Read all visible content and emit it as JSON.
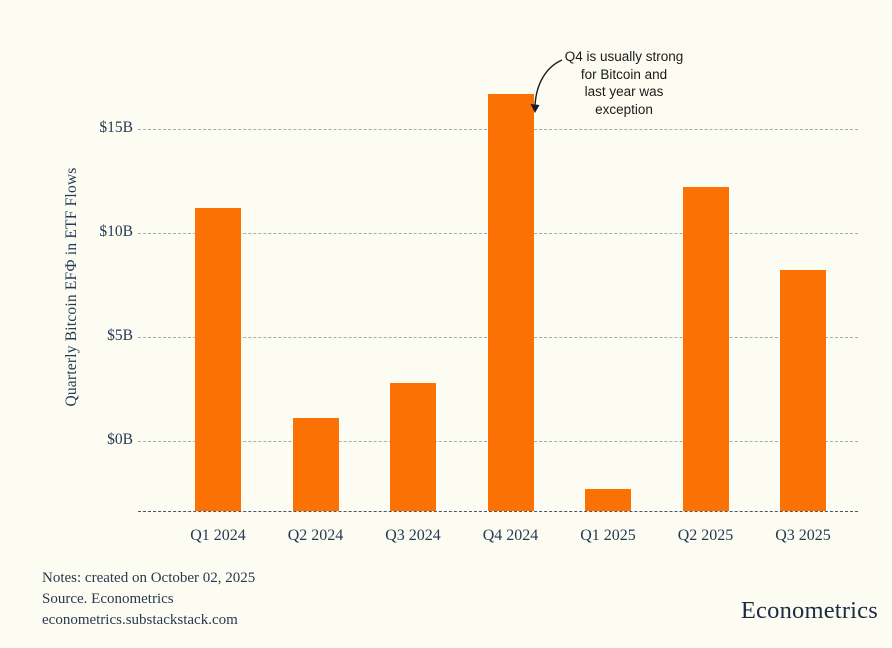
{
  "chart_data": {
    "type": "bar",
    "title": "",
    "xlabel": "",
    "ylabel": "Quarterly Bitcoin EFФ in ETF Flows",
    "categories": [
      "Q1 2024",
      "Q2 2024",
      "Q3 2024",
      "Q4 2024",
      "Q1 2025",
      "Q2 2025",
      "Q3 2025"
    ],
    "values": [
      11.2,
      1.1,
      2.8,
      16.7,
      -2.3,
      12.2,
      8.2
    ],
    "yticks": [
      {
        "label": "$15B",
        "value": 15
      },
      {
        "label": "$10B",
        "value": 10
      },
      {
        "label": "$5B",
        "value": 5
      },
      {
        "label": "$0B",
        "value": 0
      }
    ],
    "ylim": [
      -3.37,
      18
    ],
    "grid": true,
    "legend_position": "none",
    "bar_color": "#fb7104",
    "annotation": {
      "text": "Q4 is usually strong\nfor Bitcoin and\nlast year was\nexception",
      "target_category": "Q4 2024"
    }
  },
  "footer": {
    "line1": "Notes: created on October 02, 2025",
    "line2": "Source. Econometrics",
    "line3": "econometrics.substackstack.com"
  },
  "branding": {
    "logo_text": "Econometrics"
  }
}
